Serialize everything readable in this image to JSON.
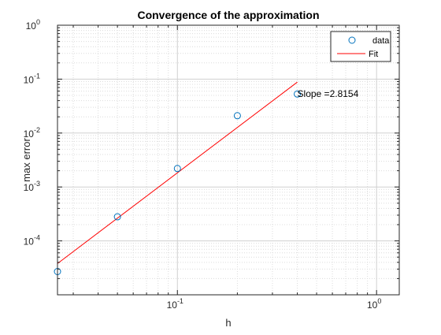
{
  "chart_data": {
    "type": "scatter",
    "title": "Convergence of the approximation",
    "xlabel": "h",
    "ylabel": "max error",
    "xscale": "log",
    "yscale": "log",
    "xlim": [
      0.025,
      1.3
    ],
    "ylim": [
      1e-05,
      1
    ],
    "grid": true,
    "minor_grid": true,
    "legend": "top-right",
    "x_ticks": [
      {
        "value": 0.1,
        "base": "10",
        "exp": "-1"
      },
      {
        "value": 1,
        "base": "10",
        "exp": "0"
      }
    ],
    "y_ticks": [
      {
        "value": 0.0001,
        "base": "10",
        "exp": "-4"
      },
      {
        "value": 0.001,
        "base": "10",
        "exp": "-3"
      },
      {
        "value": 0.01,
        "base": "10",
        "exp": "-2"
      },
      {
        "value": 0.1,
        "base": "10",
        "exp": "-1"
      },
      {
        "value": 1,
        "base": "10",
        "exp": "0"
      }
    ],
    "series": [
      {
        "name": "data",
        "marker": "circle",
        "color": "#0072BD",
        "x": [
          0.025,
          0.05,
          0.1,
          0.2,
          0.4
        ],
        "y": [
          2.7e-05,
          0.00028,
          0.0022,
          0.021,
          0.053
        ]
      },
      {
        "name": "Fit",
        "marker": "line",
        "color": "#FF0000",
        "x": [
          0.025,
          0.4
        ],
        "y": [
          3.8e-05,
          0.088
        ]
      }
    ],
    "annotations": [
      {
        "text": "Slope =2.8154",
        "x": 0.4,
        "y": 0.047
      }
    ]
  }
}
